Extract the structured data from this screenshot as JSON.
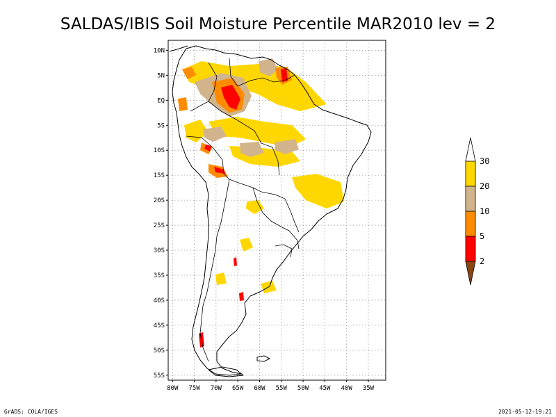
{
  "title": "SALDAS/IBIS Soil Moisture Percentile MAR2010 lev = 2",
  "map": {
    "lon_range": [
      -81,
      -31
    ],
    "lat_range": [
      -56,
      12
    ],
    "lat_ticks": [
      {
        "lat": 10,
        "label": "10N"
      },
      {
        "lat": 5,
        "label": "5N"
      },
      {
        "lat": 0,
        "label": "EQ"
      },
      {
        "lat": -5,
        "label": "5S"
      },
      {
        "lat": -10,
        "label": "10S"
      },
      {
        "lat": -15,
        "label": "15S"
      },
      {
        "lat": -20,
        "label": "20S"
      },
      {
        "lat": -25,
        "label": "25S"
      },
      {
        "lat": -30,
        "label": "30S"
      },
      {
        "lat": -35,
        "label": "35S"
      },
      {
        "lat": -40,
        "label": "40S"
      },
      {
        "lat": -45,
        "label": "45S"
      },
      {
        "lat": -50,
        "label": "50S"
      },
      {
        "lat": -55,
        "label": "55S"
      }
    ],
    "lon_ticks": [
      {
        "lon": -80,
        "label": "80W"
      },
      {
        "lon": -75,
        "label": "75W"
      },
      {
        "lon": -70,
        "label": "70W"
      },
      {
        "lon": -65,
        "label": "65W"
      },
      {
        "lon": -60,
        "label": "60W"
      },
      {
        "lon": -55,
        "label": "55W"
      },
      {
        "lon": -50,
        "label": "50W"
      },
      {
        "lon": -45,
        "label": "45W"
      },
      {
        "lon": -40,
        "label": "40W"
      },
      {
        "lon": -35,
        "label": "35W"
      }
    ]
  },
  "legend": {
    "bins": [
      {
        "name": "below-2",
        "color": "#8b4513"
      },
      {
        "name": "2-5",
        "color": "#ff0000"
      },
      {
        "name": "5-10",
        "color": "#ff8c00"
      },
      {
        "name": "10-20",
        "color": "#d2b48c"
      },
      {
        "name": "20-30",
        "color": "#ffd700"
      },
      {
        "name": "above-30",
        "color": "#ffffff"
      }
    ],
    "labels": [
      "2",
      "5",
      "10",
      "20",
      "30"
    ]
  },
  "footer": {
    "left": "GrADS: COLA/IGES",
    "right": "2021-05-12-19:21"
  },
  "colors": {
    "background": "#ffffff",
    "grid": "#9a9a9a",
    "coast": "#000000"
  }
}
